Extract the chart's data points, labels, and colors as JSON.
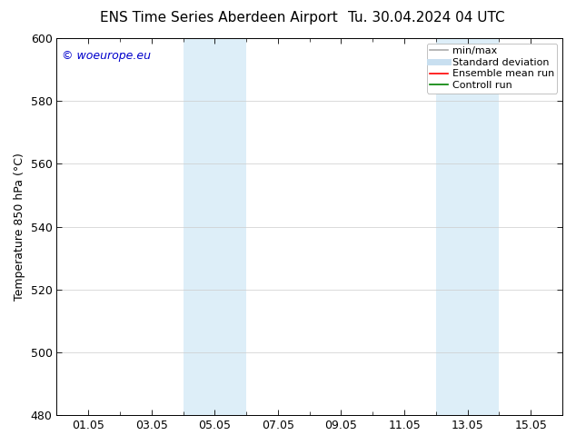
{
  "title_left": "ENS Time Series Aberdeen Airport",
  "title_right": "Tu. 30.04.2024 04 UTC",
  "ylabel": "Temperature 850 hPa (°C)",
  "ylim": [
    480,
    600
  ],
  "yticks": [
    480,
    500,
    520,
    540,
    560,
    580,
    600
  ],
  "xtick_labels": [
    "01.05",
    "03.05",
    "05.05",
    "07.05",
    "09.05",
    "11.05",
    "13.05",
    "15.05"
  ],
  "xtick_positions": [
    1,
    3,
    5,
    7,
    9,
    11,
    13,
    15
  ],
  "xlim": [
    0,
    16
  ],
  "shade_bands": [
    {
      "x_start": 4,
      "x_end": 6,
      "color": "#ddeef8"
    },
    {
      "x_start": 12,
      "x_end": 14,
      "color": "#ddeef8"
    }
  ],
  "watermark_text": "© woeurope.eu",
  "watermark_color": "#0000cc",
  "legend_items": [
    {
      "label": "min/max",
      "color": "#aaaaaa",
      "lw": 1.2
    },
    {
      "label": "Standard deviation",
      "color": "#c8dff0",
      "lw": 5
    },
    {
      "label": "Ensemble mean run",
      "color": "#ff0000",
      "lw": 1.2
    },
    {
      "label": "Controll run",
      "color": "#008000",
      "lw": 1.2
    }
  ],
  "bg_color": "#ffffff",
  "grid_color": "#cccccc",
  "title_fontsize": 11,
  "label_fontsize": 9,
  "tick_fontsize": 9,
  "legend_fontsize": 8
}
